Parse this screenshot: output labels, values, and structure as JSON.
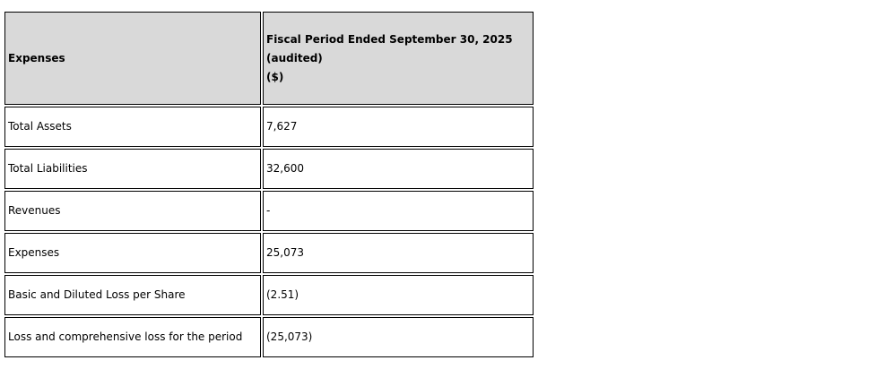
{
  "table": {
    "header": {
      "label_col": "Expenses",
      "value_col_lines": {
        "line1": "Fiscal Period Ended September 30, 2025",
        "line2": "(audited)",
        "line3": "($)"
      }
    },
    "rows": [
      {
        "label": "Total Assets",
        "value": "7,627"
      },
      {
        "label": "Total Liabilities",
        "value": "32,600"
      },
      {
        "label": "Revenues",
        "value": "-"
      },
      {
        "label": "Expenses",
        "value": "25,073"
      },
      {
        "label": "Basic and Diluted Loss per Share",
        "value": "(2.51)"
      },
      {
        "label": "Loss and comprehensive loss for the period",
        "value": "(25,073)"
      }
    ],
    "colors": {
      "header_bg": "#d9d9d9",
      "border": "#000000",
      "text": "#000000"
    }
  }
}
